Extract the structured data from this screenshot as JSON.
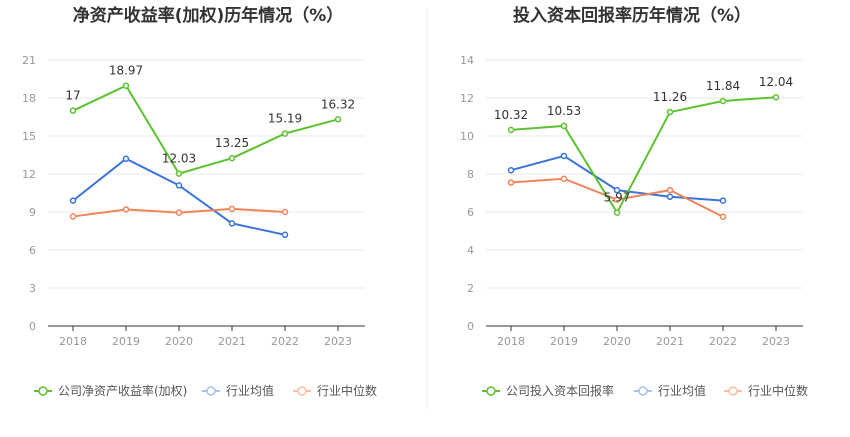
{
  "chart_data": [
    {
      "type": "line",
      "title": "净资产收益率(加权)历年情况（%）",
      "categories": [
        "2018",
        "2019",
        "2020",
        "2021",
        "2022",
        "2023"
      ],
      "ylim": [
        0,
        21
      ],
      "yticks": [
        0,
        3,
        6,
        9,
        12,
        15,
        18,
        21
      ],
      "grid": true,
      "legend_position": "bottom-left",
      "series": [
        {
          "name": "公司净资产收益率(加权)",
          "color": "#5cc22f",
          "labeled": true,
          "values": [
            17,
            18.97,
            12.03,
            13.25,
            15.19,
            16.32
          ],
          "labels": [
            "17",
            "18.97",
            "12.03",
            "13.25",
            "15.19",
            "16.32"
          ]
        },
        {
          "name": "行业均值",
          "color": "#3a74d9",
          "labeled": false,
          "values": [
            9.9,
            13.2,
            11.1,
            8.1,
            7.2,
            null
          ]
        },
        {
          "name": "行业中位数",
          "color": "#f0845a",
          "labeled": false,
          "values": [
            8.65,
            9.2,
            8.95,
            9.25,
            9.0,
            null
          ]
        }
      ]
    },
    {
      "type": "line",
      "title": "投入资本回报率历年情况（%）",
      "categories": [
        "2018",
        "2019",
        "2020",
        "2021",
        "2022",
        "2023"
      ],
      "ylim": [
        0,
        14
      ],
      "yticks": [
        0,
        2,
        4,
        6,
        8,
        10,
        12,
        14
      ],
      "grid": true,
      "legend_position": "bottom-left",
      "series": [
        {
          "name": "公司投入资本回报率",
          "color": "#5cc22f",
          "labeled": true,
          "values": [
            10.32,
            10.53,
            5.97,
            11.26,
            11.84,
            12.04
          ],
          "labels": [
            "10.32",
            "10.53",
            "5.97",
            "11.26",
            "11.84",
            "12.04"
          ]
        },
        {
          "name": "行业均值",
          "color": "#3a74d9",
          "labeled": false,
          "values": [
            8.2,
            8.95,
            7.15,
            6.8,
            6.6,
            null
          ]
        },
        {
          "name": "行业中位数",
          "color": "#f0845a",
          "labeled": false,
          "values": [
            7.55,
            7.75,
            6.65,
            7.15,
            5.75,
            null
          ]
        }
      ]
    }
  ]
}
